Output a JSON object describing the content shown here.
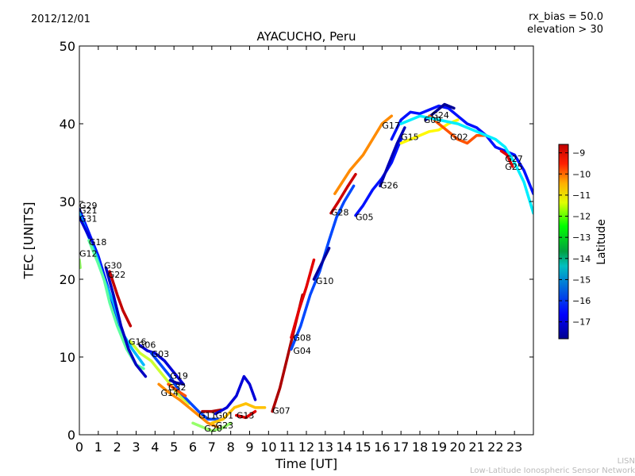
{
  "header": {
    "date": "2012/12/01",
    "rx_bias": "rx_bias = 50.0",
    "elevation": "elevation > 30"
  },
  "footer": {
    "network_short": "LISN",
    "network_long": "Low-Latitude Ionospheric Sensor Network"
  },
  "chart_data": {
    "type": "line",
    "title": "AYACUCHO, Peru",
    "xlabel": "Time [UT]",
    "ylabel": "TEC [UNITS]",
    "xlim": [
      0,
      24
    ],
    "ylim": [
      0,
      50
    ],
    "xticks": [
      0,
      1,
      2,
      3,
      4,
      5,
      6,
      7,
      8,
      9,
      10,
      11,
      12,
      13,
      14,
      15,
      16,
      17,
      18,
      19,
      20,
      21,
      22,
      23
    ],
    "yticks": [
      0,
      10,
      20,
      30,
      40,
      50
    ],
    "grid": false,
    "colorbar": {
      "label": "Latitude",
      "range": [
        -17.8,
        -8.6
      ],
      "ticks": [
        -9,
        -10,
        -11,
        -12,
        -13,
        -14,
        -15,
        -16,
        -17
      ],
      "colormap": "jet"
    },
    "series": [
      {
        "name": "G29",
        "label_at": [
          0.0,
          29.5
        ],
        "lat": -16.5,
        "points": [
          [
            0,
            29
          ],
          [
            0.5,
            26
          ],
          [
            1,
            23
          ],
          [
            1.5,
            19
          ],
          [
            2,
            15
          ],
          [
            2.5,
            11.5
          ]
        ]
      },
      {
        "name": "G21",
        "label_at": [
          0.0,
          28.9
        ],
        "lat": -15.0,
        "points": [
          [
            0,
            28.5
          ],
          [
            0.4,
            26
          ],
          [
            0.9,
            23
          ],
          [
            1.3,
            20
          ],
          [
            1.8,
            17
          ],
          [
            2.3,
            13
          ],
          [
            2.8,
            11
          ],
          [
            3.4,
            9
          ]
        ]
      },
      {
        "name": "G31",
        "label_at": [
          0.0,
          27.8
        ],
        "lat": -17.0,
        "points": [
          [
            0,
            28
          ],
          [
            0.3,
            26.5
          ],
          [
            0.7,
            24.5
          ]
        ]
      },
      {
        "name": "G18",
        "label_at": [
          0.5,
          24.8
        ],
        "lat": -13.5,
        "points": [
          [
            0.5,
            25
          ],
          [
            1,
            22
          ],
          [
            1.3,
            20
          ],
          [
            1.6,
            17
          ],
          [
            2,
            14
          ],
          [
            2.5,
            11
          ],
          [
            3,
            9
          ],
          [
            3.4,
            8.5
          ]
        ]
      },
      {
        "name": "G12",
        "label_at": [
          0.0,
          23.3
        ],
        "lat": -13.0,
        "points": [
          [
            0,
            22.5
          ],
          [
            0.05,
            21.5
          ]
        ]
      },
      {
        "name": "G30",
        "label_at": [
          1.3,
          21.8
        ],
        "lat": -17.2,
        "points": [
          [
            1.4,
            21.5
          ],
          [
            1.8,
            18
          ],
          [
            2.2,
            14
          ],
          [
            2.6,
            11
          ],
          [
            3,
            9
          ],
          [
            3.5,
            7.5
          ]
        ]
      },
      {
        "name": "G22",
        "label_at": [
          1.5,
          20.6
        ],
        "lat": -9.2,
        "points": [
          [
            1.6,
            21
          ],
          [
            2,
            18
          ],
          [
            2.3,
            16
          ],
          [
            2.7,
            14
          ]
        ]
      },
      {
        "name": "G16",
        "label_at": [
          2.6,
          12.0
        ],
        "lat": -12.5,
        "points": [
          [
            2.7,
            12
          ],
          [
            3.2,
            10.5
          ],
          [
            3.8,
            9.5
          ],
          [
            4.3,
            8
          ],
          [
            4.8,
            6.5
          ],
          [
            5.3,
            5
          ],
          [
            5.8,
            4
          ]
        ]
      },
      {
        "name": "G06",
        "label_at": [
          3.1,
          11.6
        ],
        "lat": -17.0,
        "points": [
          [
            3.2,
            11.5
          ],
          [
            3.6,
            10.8
          ],
          [
            4,
            10.5
          ],
          [
            4.5,
            9.5
          ],
          [
            5,
            8
          ],
          [
            5.5,
            6.5
          ]
        ]
      },
      {
        "name": "G03",
        "label_at": [
          3.8,
          10.4
        ],
        "lat": -16.0,
        "points": [
          [
            3.8,
            10.5
          ],
          [
            4.3,
            9
          ],
          [
            4.8,
            7.5
          ],
          [
            5.3,
            5.5
          ],
          [
            5.9,
            4
          ],
          [
            6.3,
            3
          ],
          [
            6.8,
            2
          ],
          [
            7.3,
            2
          ]
        ]
      },
      {
        "name": "G19",
        "label_at": [
          4.8,
          7.6
        ],
        "lat": -17.5,
        "points": [
          [
            4.8,
            7
          ],
          [
            5.1,
            6.7
          ],
          [
            5.5,
            6.5
          ]
        ]
      },
      {
        "name": "G32",
        "label_at": [
          4.7,
          6.1
        ],
        "lat": -10.5,
        "points": [
          [
            4.7,
            6.5
          ],
          [
            5.1,
            5.8
          ],
          [
            5.6,
            5.0
          ]
        ]
      },
      {
        "name": "G14",
        "label_at": [
          4.3,
          5.4
        ],
        "lat": -11.0,
        "points": [
          [
            4.2,
            6.5
          ],
          [
            4.7,
            5.5
          ],
          [
            5.3,
            4.5
          ],
          [
            5.8,
            3.5
          ],
          [
            6.3,
            2.5
          ],
          [
            6.8,
            1.5
          ],
          [
            7.3,
            1
          ]
        ]
      },
      {
        "name": "G11",
        "label_at": [
          6.3,
          2.5
        ],
        "lat": -9.0,
        "points": [
          [
            6.5,
            3
          ],
          [
            7,
            3
          ],
          [
            7.5,
            3.2
          ]
        ]
      },
      {
        "name": "G01",
        "label_at": [
          7.2,
          2.5
        ],
        "lat": -17.0,
        "points": [
          [
            7.2,
            2.7
          ],
          [
            7.8,
            3.5
          ],
          [
            8.3,
            5
          ],
          [
            8.7,
            7.5
          ],
          [
            9.0,
            6.5
          ],
          [
            9.3,
            4.5
          ]
        ]
      },
      {
        "name": "G13",
        "label_at": [
          8.3,
          2.5
        ],
        "lat": -9.5,
        "points": [
          [
            8.3,
            2.5
          ],
          [
            8.8,
            2.2
          ],
          [
            9.3,
            3
          ]
        ]
      },
      {
        "name": "G20",
        "label_at": [
          6.6,
          0.8
        ],
        "lat": -13.0,
        "points": [
          [
            6,
            1.5
          ],
          [
            6.5,
            1
          ],
          [
            7,
            0.5
          ],
          [
            7.5,
            0.8
          ],
          [
            8,
            1.5
          ]
        ]
      },
      {
        "name": "G23",
        "label_at": [
          7.2,
          1.2
        ],
        "lat": -11.5,
        "points": [
          [
            7,
            1.5
          ],
          [
            7.6,
            2
          ],
          [
            8.2,
            3.5
          ],
          [
            8.8,
            4
          ],
          [
            9.3,
            3.5
          ],
          [
            9.8,
            3.5
          ]
        ]
      },
      {
        "name": "G07",
        "label_at": [
          10.2,
          3.1
        ],
        "lat": -9.0,
        "points": [
          [
            10.2,
            3
          ],
          [
            10.6,
            6
          ],
          [
            11,
            10
          ],
          [
            11.4,
            14
          ],
          [
            11.8,
            18
          ]
        ]
      },
      {
        "name": "G08",
        "label_at": [
          11.3,
          12.5
        ],
        "lat": -9.5,
        "points": [
          [
            11.2,
            12.5
          ],
          [
            11.6,
            16
          ],
          [
            12,
            19
          ],
          [
            12.4,
            22.5
          ]
        ]
      },
      {
        "name": "G04",
        "label_at": [
          11.3,
          10.8
        ],
        "lat": -16.0,
        "points": [
          [
            11.2,
            11
          ],
          [
            11.7,
            14
          ],
          [
            12.2,
            18
          ],
          [
            12.7,
            21
          ],
          [
            13.2,
            25
          ],
          [
            13.6,
            28
          ],
          [
            14,
            30
          ],
          [
            14.5,
            32
          ]
        ]
      },
      {
        "name": "G10",
        "label_at": [
          12.5,
          19.8
        ],
        "lat": -17.5,
        "points": [
          [
            12.4,
            20
          ],
          [
            12.8,
            22
          ],
          [
            13.2,
            24
          ]
        ]
      },
      {
        "name": "G28",
        "label_at": [
          13.3,
          28.6
        ],
        "lat": -9.3,
        "points": [
          [
            13.3,
            28.5
          ],
          [
            13.7,
            30
          ],
          [
            14.2,
            32
          ],
          [
            14.6,
            33.5
          ]
        ]
      },
      {
        "name": "G05",
        "label_at": [
          14.6,
          28.0
        ],
        "lat": -16.5,
        "points": [
          [
            14.6,
            28.2
          ],
          [
            15,
            29.5
          ],
          [
            15.5,
            31.5
          ],
          [
            16,
            33
          ],
          [
            16.5,
            35
          ],
          [
            17,
            38
          ]
        ]
      },
      {
        "name": "G26",
        "label_at": [
          15.9,
          32.1
        ],
        "lat": -17.3,
        "points": [
          [
            15.9,
            32
          ],
          [
            16.3,
            34.5
          ],
          [
            16.8,
            37.5
          ],
          [
            17.2,
            39.5
          ]
        ]
      },
      {
        "name": "G17",
        "label_at": [
          16.0,
          39.8
        ],
        "lat": -11.0,
        "points": [
          [
            13.5,
            31
          ],
          [
            14.3,
            34
          ],
          [
            15,
            36
          ],
          [
            15.5,
            38
          ],
          [
            16,
            40
          ],
          [
            16.5,
            41
          ]
        ]
      },
      {
        "name": "G15",
        "label_at": [
          17.0,
          38.3
        ],
        "lat": -12.0,
        "points": [
          [
            17,
            37.5
          ],
          [
            17.5,
            38
          ],
          [
            18,
            38.5
          ],
          [
            18.5,
            39
          ],
          [
            19,
            39.2
          ],
          [
            19.5,
            40
          ],
          [
            20,
            40.5
          ]
        ]
      },
      {
        "name": "G09",
        "label_at": [
          18.2,
          40.5
        ],
        "lat": -16.5,
        "points": [
          [
            16.5,
            38
          ],
          [
            17,
            40.5
          ],
          [
            17.5,
            41.5
          ],
          [
            18,
            41.3
          ],
          [
            18.5,
            41.8
          ],
          [
            19,
            42.3
          ],
          [
            19.5,
            42
          ],
          [
            20,
            41
          ],
          [
            20.5,
            40
          ],
          [
            21,
            39.5
          ],
          [
            21.5,
            38.5
          ],
          [
            22,
            37
          ],
          [
            22.5,
            36.5
          ],
          [
            23,
            36
          ],
          [
            23.5,
            34
          ],
          [
            24,
            31
          ]
        ]
      },
      {
        "name": "G24",
        "label_at": [
          18.6,
          41.1
        ],
        "lat": -17.6,
        "points": [
          [
            18.3,
            40.5
          ],
          [
            18.8,
            41.5
          ],
          [
            19.3,
            42.5
          ],
          [
            19.8,
            42
          ]
        ]
      },
      {
        "name": "G02",
        "label_at": [
          19.6,
          38.3
        ],
        "lat": -10.5,
        "points": [
          [
            18.5,
            41
          ],
          [
            19,
            40
          ],
          [
            19.5,
            39
          ],
          [
            20,
            38
          ],
          [
            20.5,
            37.5
          ],
          [
            21,
            38.5
          ],
          [
            21.5,
            38.5
          ]
        ]
      },
      {
        "name": "G27",
        "label_at": [
          22.5,
          35.5
        ],
        "lat": -14.5,
        "points": [
          [
            17,
            40
          ],
          [
            18,
            41
          ],
          [
            19,
            40.5
          ],
          [
            20,
            40
          ],
          [
            21,
            39
          ],
          [
            22,
            38
          ],
          [
            22.5,
            37
          ],
          [
            23,
            35
          ],
          [
            23.5,
            32.5
          ],
          [
            24,
            28.5
          ]
        ]
      },
      {
        "name": "G25",
        "label_at": [
          22.5,
          34.5
        ],
        "lat": -9.5,
        "points": [
          [
            22.3,
            36.5
          ],
          [
            22.6,
            36
          ],
          [
            22.9,
            34.5
          ]
        ]
      }
    ]
  }
}
